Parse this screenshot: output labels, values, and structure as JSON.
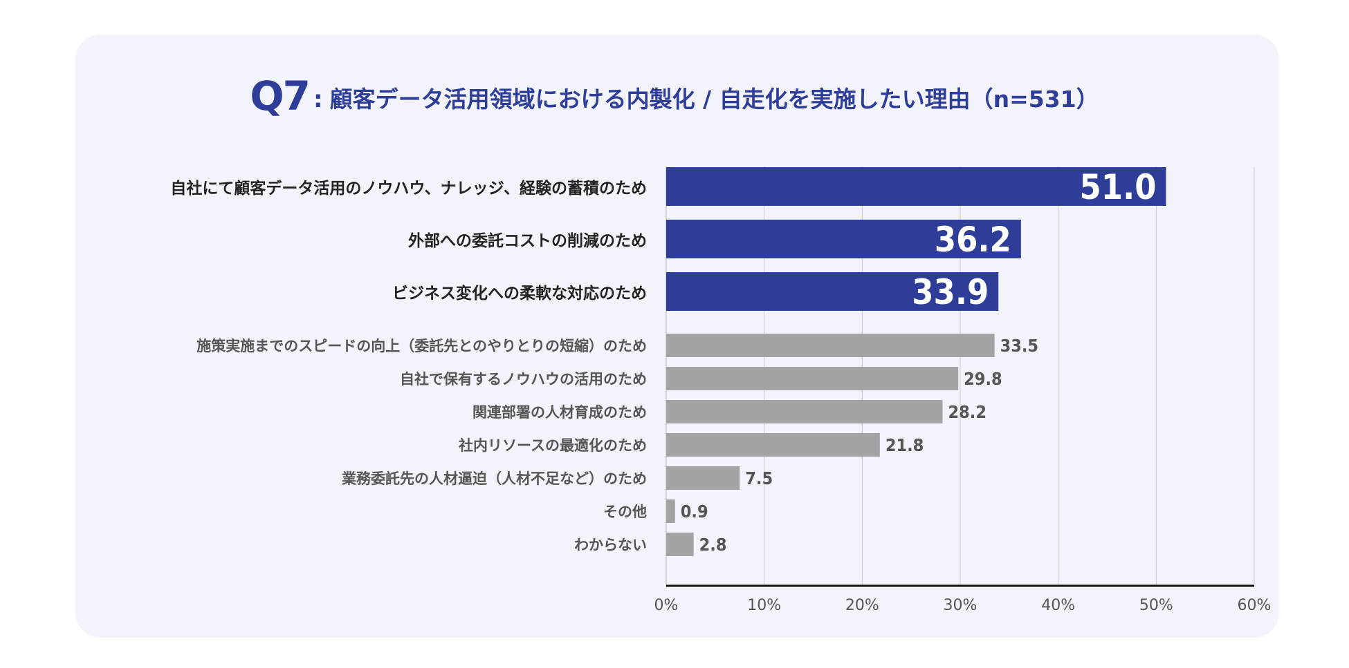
{
  "title": {
    "prefix": "Q7",
    "separator": ":",
    "text": "顧客データ活用領域における内製化 / 自走化を実施したい理由（n=531）"
  },
  "colors": {
    "panel_bg": "#f3f4fb",
    "highlight_bar": "#2d3d98",
    "normal_bar": "#a3a3a3",
    "title": "#2d3d98",
    "gridline": "#c8c8c8",
    "axis": "#111111"
  },
  "chart_data": {
    "type": "bar",
    "orientation": "horizontal",
    "categories": [
      "自社にて顧客データ活用のノウハウ、ナレッジ、経験の蓄積のため",
      "外部への委託コストの削減のため",
      "ビジネス変化への柔軟な対応のため",
      "施策実施までのスピードの向上（委託先とのやりとりの短縮）のため",
      "自社で保有するノウハウの活用のため",
      "関連部署の人材育成のため",
      "社内リソースの最適化のため",
      "業務委託先の人材逼迫（人材不足など）のため",
      "その他",
      "わからない"
    ],
    "values": [
      51.0,
      36.2,
      33.9,
      33.5,
      29.8,
      28.2,
      21.8,
      7.5,
      0.9,
      2.8
    ],
    "value_labels": [
      "51.0",
      "36.2",
      "33.9",
      "33.5",
      "29.8",
      "28.2",
      "21.8",
      "7.5",
      "0.9",
      "2.8"
    ],
    "highlighted": [
      true,
      true,
      true,
      false,
      false,
      false,
      false,
      false,
      false,
      false
    ],
    "xlim": [
      0,
      60
    ],
    "xticks": [
      "0%",
      "10%",
      "20%",
      "30%",
      "40%",
      "50%",
      "60%"
    ],
    "grid": true,
    "title": "Q7：顧客データ活用領域における内製化 / 自走化を実施したい理由（n=531）",
    "xlabel": "",
    "ylabel": ""
  }
}
